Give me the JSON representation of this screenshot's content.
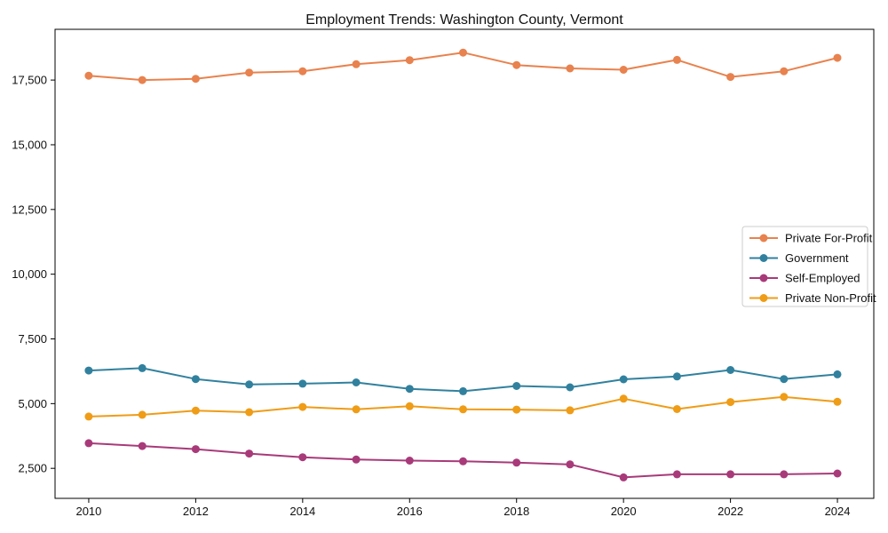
{
  "figure": {
    "background": "#ffffff",
    "frame_color": "#000000",
    "text_color": "#111111"
  },
  "chart_data": {
    "type": "line",
    "title": "Employment Trends: Washington County, Vermont",
    "xlabel": "",
    "ylabel": "",
    "x": [
      2010,
      2011,
      2012,
      2013,
      2014,
      2015,
      2016,
      2017,
      2018,
      2019,
      2020,
      2021,
      2022,
      2023,
      2024
    ],
    "xticks": [
      2010,
      2012,
      2014,
      2016,
      2018,
      2020,
      2022,
      2024
    ],
    "yticks": [
      2500,
      5000,
      7500,
      10000,
      12500,
      15000,
      17500
    ],
    "xlim": [
      2009.37,
      2024.68
    ],
    "ylim": [
      1340,
      19460
    ],
    "grid": false,
    "marker": "circle",
    "legend": {
      "position": "center-right",
      "background": "#ffffff",
      "border_color": "#cccccc"
    },
    "series": [
      {
        "name": "Private For-Profit",
        "color": "#e8824e",
        "values": [
          17670,
          17500,
          17550,
          17790,
          17840,
          18110,
          18270,
          18560,
          18080,
          17950,
          17900,
          18280,
          17620,
          17840,
          18360
        ]
      },
      {
        "name": "Government",
        "color": "#31819e",
        "values": [
          6280,
          6370,
          5950,
          5740,
          5770,
          5820,
          5570,
          5480,
          5680,
          5630,
          5940,
          6050,
          6300,
          5950,
          6130
        ]
      },
      {
        "name": "Self-Employed",
        "color": "#a83a7a",
        "values": [
          3470,
          3360,
          3240,
          3070,
          2930,
          2840,
          2800,
          2770,
          2720,
          2650,
          2150,
          2270,
          2270,
          2270,
          2300
        ]
      },
      {
        "name": "Private Non-Profit",
        "color": "#ef9c17",
        "values": [
          4500,
          4570,
          4730,
          4670,
          4870,
          4780,
          4900,
          4780,
          4770,
          4740,
          5190,
          4790,
          5060,
          5260,
          5070
        ]
      }
    ]
  }
}
